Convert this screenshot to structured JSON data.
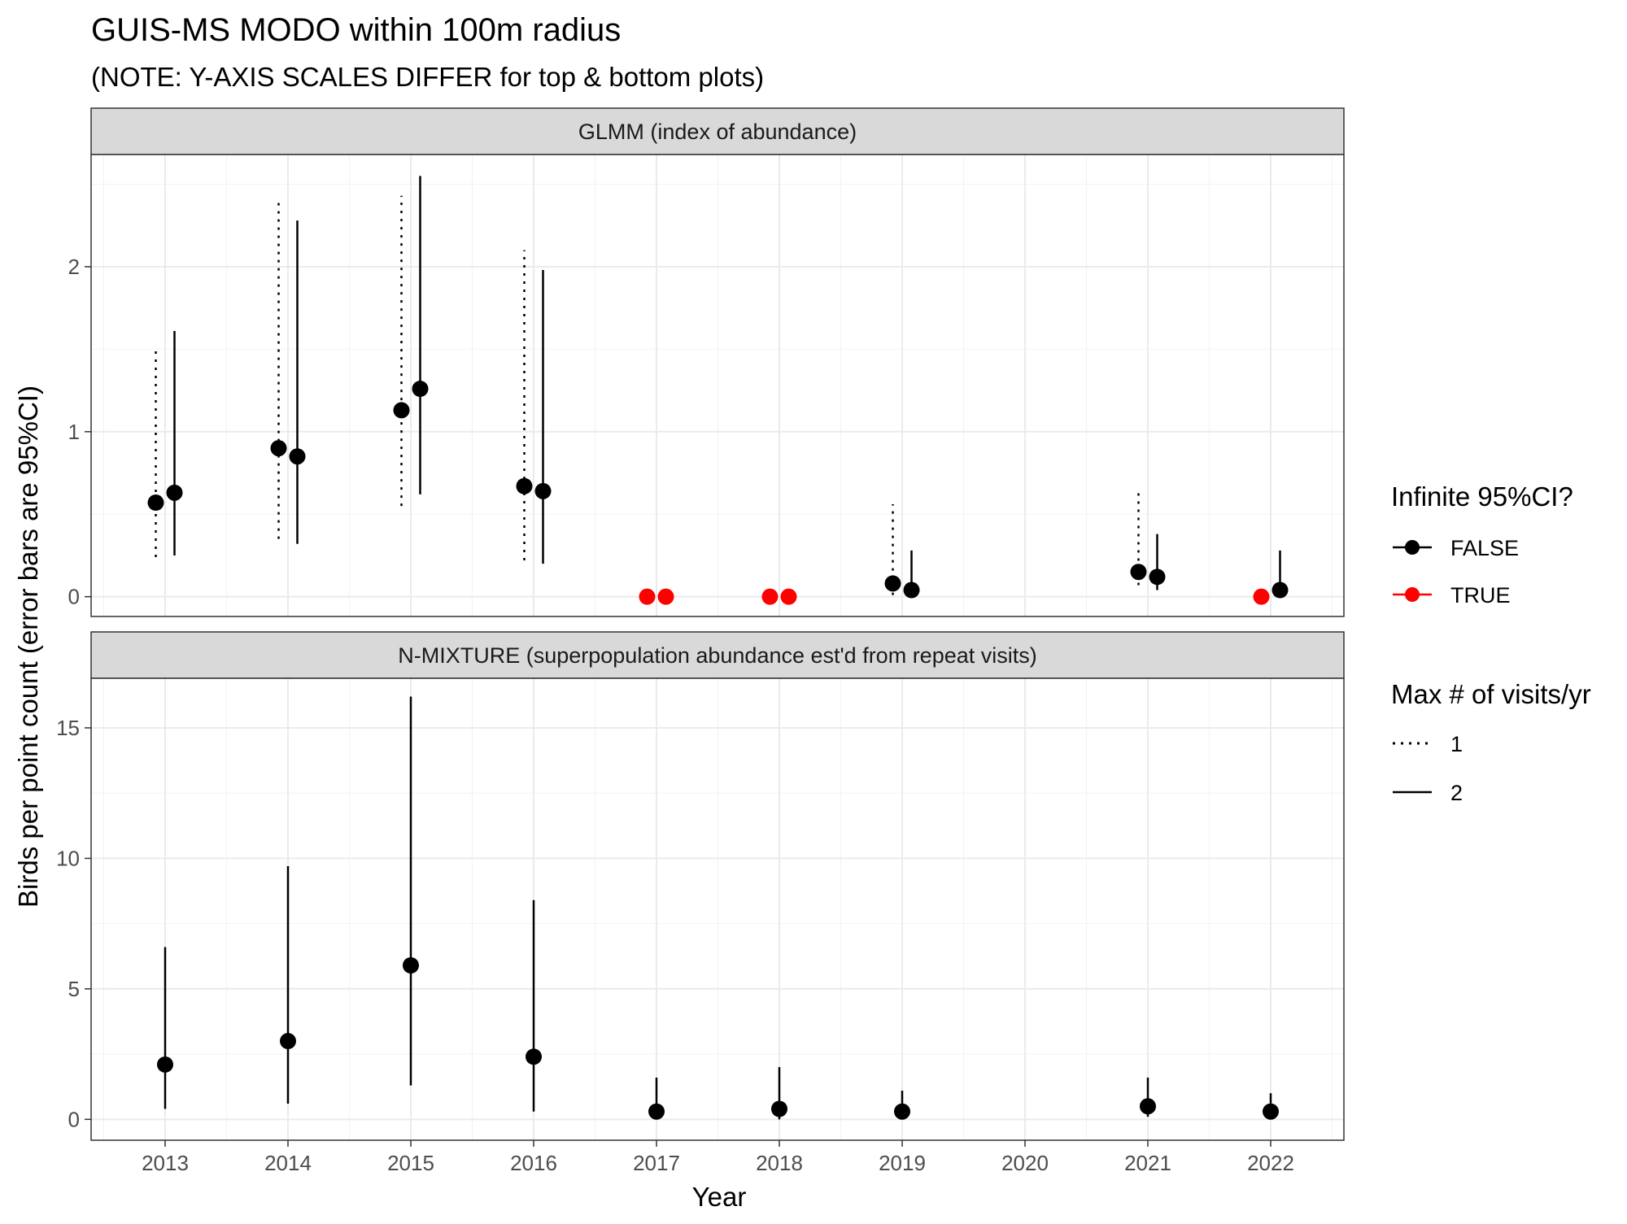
{
  "chart_data": {
    "type": "scatter",
    "title": "GUIS-MS MODO within 100m radius",
    "subtitle": "(NOTE: Y-AXIS SCALES DIFFER for top & bottom plots)",
    "xlabel": "Year",
    "ylabel": "Birds per point count (error bars are 95%CI)",
    "x_ticks": [
      "2013",
      "2014",
      "2015",
      "2016",
      "2017",
      "2018",
      "2019",
      "2020",
      "2021",
      "2022"
    ],
    "grid": true,
    "legend_position": "right",
    "legends": [
      {
        "title": "Infinite 95%CI?",
        "entries": [
          {
            "label": "FALSE",
            "color": "#000000"
          },
          {
            "label": "TRUE",
            "color": "#ff0000"
          }
        ]
      },
      {
        "title": "Max # of visits/yr",
        "entries": [
          {
            "label": "1",
            "linetype": "dotted"
          },
          {
            "label": "2",
            "linetype": "solid"
          }
        ]
      }
    ],
    "panels": [
      {
        "strip": "GLMM (index of abundance)",
        "ylim": [
          -0.12,
          2.68
        ],
        "y_ticks": [
          0,
          1,
          2
        ],
        "points": [
          {
            "year": 2013,
            "visits": 1,
            "infinite_ci": false,
            "y": 0.57,
            "lo": 0.24,
            "hi": 1.52
          },
          {
            "year": 2013,
            "visits": 2,
            "infinite_ci": false,
            "y": 0.63,
            "lo": 0.25,
            "hi": 1.61
          },
          {
            "year": 2014,
            "visits": 1,
            "infinite_ci": false,
            "y": 0.9,
            "lo": 0.35,
            "hi": 2.4
          },
          {
            "year": 2014,
            "visits": 2,
            "infinite_ci": false,
            "y": 0.85,
            "lo": 0.32,
            "hi": 2.28
          },
          {
            "year": 2015,
            "visits": 1,
            "infinite_ci": false,
            "y": 1.13,
            "lo": 0.55,
            "hi": 2.43
          },
          {
            "year": 2015,
            "visits": 2,
            "infinite_ci": false,
            "y": 1.26,
            "lo": 0.62,
            "hi": 2.55
          },
          {
            "year": 2016,
            "visits": 1,
            "infinite_ci": false,
            "y": 0.67,
            "lo": 0.22,
            "hi": 2.1
          },
          {
            "year": 2016,
            "visits": 2,
            "infinite_ci": false,
            "y": 0.64,
            "lo": 0.2,
            "hi": 1.98
          },
          {
            "year": 2017,
            "visits": 1,
            "infinite_ci": true,
            "y": 0.0,
            "lo": null,
            "hi": null
          },
          {
            "year": 2017,
            "visits": 2,
            "infinite_ci": true,
            "y": 0.0,
            "lo": null,
            "hi": null
          },
          {
            "year": 2018,
            "visits": 1,
            "infinite_ci": true,
            "y": 0.0,
            "lo": null,
            "hi": null
          },
          {
            "year": 2018,
            "visits": 2,
            "infinite_ci": true,
            "y": 0.0,
            "lo": null,
            "hi": null
          },
          {
            "year": 2019,
            "visits": 1,
            "infinite_ci": false,
            "y": 0.08,
            "lo": 0.01,
            "hi": 0.56
          },
          {
            "year": 2019,
            "visits": 2,
            "infinite_ci": false,
            "y": 0.04,
            "lo": 0.01,
            "hi": 0.28
          },
          {
            "year": 2021,
            "visits": 1,
            "infinite_ci": false,
            "y": 0.15,
            "lo": 0.07,
            "hi": 0.63
          },
          {
            "year": 2021,
            "visits": 2,
            "infinite_ci": false,
            "y": 0.12,
            "lo": 0.04,
            "hi": 0.38
          },
          {
            "year": 2022,
            "visits": 1,
            "infinite_ci": true,
            "y": 0.0,
            "lo": null,
            "hi": null
          },
          {
            "year": 2022,
            "visits": 2,
            "infinite_ci": false,
            "y": 0.04,
            "lo": 0.01,
            "hi": 0.28
          }
        ]
      },
      {
        "strip": "N-MIXTURE (superpopulation abundance est'd from repeat visits)",
        "ylim": [
          -0.8,
          16.9
        ],
        "y_ticks": [
          0,
          5,
          10,
          15
        ],
        "points": [
          {
            "year": 2013,
            "visits": 2,
            "infinite_ci": false,
            "y": 2.1,
            "lo": 0.4,
            "hi": 6.6
          },
          {
            "year": 2014,
            "visits": 2,
            "infinite_ci": false,
            "y": 3.0,
            "lo": 0.6,
            "hi": 9.7
          },
          {
            "year": 2015,
            "visits": 2,
            "infinite_ci": false,
            "y": 5.9,
            "lo": 1.3,
            "hi": 16.2
          },
          {
            "year": 2016,
            "visits": 2,
            "infinite_ci": false,
            "y": 2.4,
            "lo": 0.3,
            "hi": 8.4
          },
          {
            "year": 2017,
            "visits": 2,
            "infinite_ci": false,
            "y": 0.3,
            "lo": 0.0,
            "hi": 1.6
          },
          {
            "year": 2018,
            "visits": 2,
            "infinite_ci": false,
            "y": 0.4,
            "lo": 0.0,
            "hi": 2.0
          },
          {
            "year": 2019,
            "visits": 2,
            "infinite_ci": false,
            "y": 0.3,
            "lo": 0.0,
            "hi": 1.1
          },
          {
            "year": 2021,
            "visits": 2,
            "infinite_ci": false,
            "y": 0.5,
            "lo": 0.1,
            "hi": 1.6
          },
          {
            "year": 2022,
            "visits": 2,
            "infinite_ci": false,
            "y": 0.3,
            "lo": 0.0,
            "hi": 1.0
          }
        ]
      }
    ]
  }
}
